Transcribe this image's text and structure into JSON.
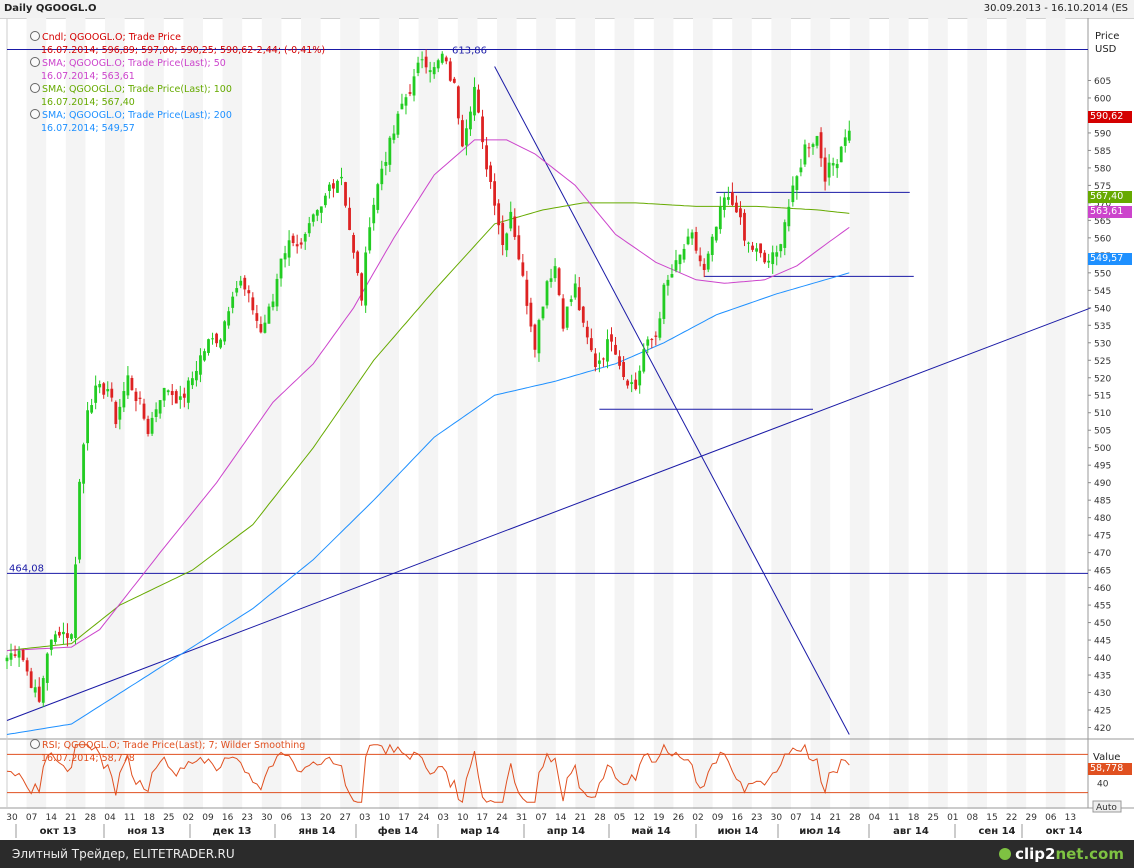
{
  "header": {
    "title": "Daily QGOOGL.O",
    "range": "30.09.2013 - 16.10.2014 (ES"
  },
  "legend": [
    {
      "line1": "Cndl; QGOOGL.O; Trade Price",
      "line2": "16.07.2014; 596,89; 597,00; 590,25; 590,62-2,44; (-0,41%)",
      "color": "#d40000"
    },
    {
      "line1": "SMA; QGOOGL.O; Trade Price(Last); 50",
      "line2": "16.07.2014; 563,61",
      "color": "#cc44cc"
    },
    {
      "line1": "SMA; QGOOGL.O; Trade Price(Last); 100",
      "line2": "16.07.2014; 567,40",
      "color": "#66aa00"
    },
    {
      "line1": "SMA; QGOOGL.O; Trade Price(Last); 200",
      "line2": "16.07.2014; 549,57",
      "color": "#1e90ff"
    }
  ],
  "rsi_legend": {
    "line1": "RSI; QGOOGL.O; Trade Price(Last); 7; Wilder Smoothing",
    "line2": "16.07.2014; 58,778"
  },
  "price_axis": {
    "title1": "Price",
    "title2": "USD",
    "labels": [
      "605",
      "600",
      "595",
      "590",
      "585",
      "580",
      "575",
      "570",
      "565",
      "560",
      "555",
      "550",
      "545",
      "540",
      "535",
      "530",
      "525",
      "520",
      "515",
      "510",
      "505",
      "500",
      "495",
      "490",
      "485",
      "480",
      "475",
      "470",
      "465",
      "460",
      "455",
      "450",
      "445",
      "440",
      "435",
      "430",
      "425",
      "420"
    ]
  },
  "rsi_axis": {
    "title": "Value",
    "labels": [
      "40"
    ],
    "auto": "Auto"
  },
  "markers": {
    "current": "590,62",
    "sma100": "567,40",
    "sma50": "563,61",
    "sma200": "549,57",
    "rsi": "58,778",
    "level_high": "613,86",
    "level_low": "464,08"
  },
  "colors": {
    "up": "#22cc22",
    "down": "#dd2222",
    "sma50": "#cc44cc",
    "sma100": "#66aa00",
    "sma200": "#1e90ff",
    "lines": "#1a1aa6",
    "rsi": "#e05020"
  },
  "x_days": [
    "30",
    "07",
    "14",
    "21",
    "28",
    "04",
    "11",
    "18",
    "25",
    "02",
    "09",
    "16",
    "23",
    "30",
    "06",
    "13",
    "20",
    "27",
    "03",
    "10",
    "17",
    "24",
    "03",
    "10",
    "17",
    "24",
    "31",
    "07",
    "14",
    "21",
    "28",
    "05",
    "12",
    "19",
    "26",
    "02",
    "09",
    "16",
    "23",
    "30",
    "07",
    "14",
    "21",
    "28",
    "04",
    "11",
    "18",
    "25",
    "01",
    "08",
    "15",
    "22",
    "29",
    "06",
    "13"
  ],
  "x_months": [
    "окт 13",
    "ноя 13",
    "дек 13",
    "янв 14",
    "фев 14",
    "мар 14",
    "апр 14",
    "май 14",
    "июн 14",
    "июл 14",
    "авг 14",
    "сен 14",
    "окт 14"
  ],
  "footer": {
    "site": "Элитный Трейдер, ELITETRADER.RU",
    "brand_main": "clip2",
    "brand_tld": "net.com"
  },
  "chart_data": {
    "type": "line",
    "title": "Daily QGOOGL.O",
    "ylabel": "Price USD",
    "ylim": [
      417,
      618
    ],
    "x_months": [
      "окт 13",
      "ноя 13",
      "дек 13",
      "янв 14",
      "фев 14",
      "мар 14",
      "апр 14",
      "май 14",
      "июн 14",
      "июл 14",
      "авг 14",
      "сен 14",
      "окт 14"
    ],
    "close_path": [
      [
        0,
        440
      ],
      [
        3,
        443
      ],
      [
        5,
        436
      ],
      [
        8,
        427
      ],
      [
        10,
        442
      ],
      [
        13,
        448
      ],
      [
        16,
        446
      ],
      [
        18,
        490
      ],
      [
        20,
        512
      ],
      [
        22,
        516
      ],
      [
        25,
        517
      ],
      [
        27,
        508
      ],
      [
        30,
        520
      ],
      [
        33,
        512
      ],
      [
        35,
        505
      ],
      [
        38,
        515
      ],
      [
        40,
        517
      ],
      [
        43,
        513
      ],
      [
        46,
        520
      ],
      [
        48,
        526
      ],
      [
        50,
        530
      ],
      [
        53,
        532
      ],
      [
        56,
        545
      ],
      [
        58,
        547
      ],
      [
        61,
        540
      ],
      [
        63,
        533
      ],
      [
        66,
        542
      ],
      [
        68,
        555
      ],
      [
        71,
        560
      ],
      [
        73,
        557
      ],
      [
        76,
        565
      ],
      [
        78,
        568
      ],
      [
        80,
        575
      ],
      [
        83,
        578
      ],
      [
        86,
        555
      ],
      [
        88,
        543
      ],
      [
        90,
        565
      ],
      [
        93,
        580
      ],
      [
        96,
        590
      ],
      [
        98,
        598
      ],
      [
        101,
        605
      ],
      [
        103,
        612
      ],
      [
        106,
        608
      ],
      [
        108,
        612
      ],
      [
        111,
        603
      ],
      [
        113,
        588
      ],
      [
        116,
        603
      ],
      [
        118,
        586
      ],
      [
        121,
        571
      ],
      [
        123,
        558
      ],
      [
        125,
        568
      ],
      [
        128,
        548
      ],
      [
        131,
        530
      ],
      [
        134,
        548
      ],
      [
        136,
        552
      ],
      [
        138,
        536
      ],
      [
        141,
        546
      ],
      [
        143,
        534
      ],
      [
        146,
        524
      ],
      [
        148,
        527
      ],
      [
        150,
        532
      ],
      [
        153,
        521
      ],
      [
        156,
        517
      ],
      [
        158,
        528
      ],
      [
        161,
        532
      ],
      [
        163,
        545
      ],
      [
        166,
        552
      ],
      [
        168,
        557
      ],
      [
        170,
        560
      ],
      [
        173,
        550
      ],
      [
        176,
        563
      ],
      [
        178,
        571
      ],
      [
        181,
        569
      ],
      [
        183,
        559
      ],
      [
        186,
        556
      ],
      [
        188,
        553
      ],
      [
        191,
        555
      ],
      [
        193,
        565
      ],
      [
        196,
        577
      ],
      [
        198,
        586
      ],
      [
        201,
        589
      ],
      [
        203,
        578
      ],
      [
        206,
        583
      ],
      [
        208,
        590
      ],
      [
        209,
        590
      ]
    ],
    "sma50_path": [
      [
        0,
        442
      ],
      [
        16,
        443
      ],
      [
        23,
        448
      ],
      [
        38,
        470
      ],
      [
        52,
        490
      ],
      [
        66,
        513
      ],
      [
        76,
        524
      ],
      [
        86,
        540
      ],
      [
        96,
        560
      ],
      [
        106,
        578
      ],
      [
        116,
        588
      ],
      [
        124,
        588
      ],
      [
        131,
        584
      ],
      [
        141,
        575
      ],
      [
        151,
        561
      ],
      [
        161,
        553
      ],
      [
        171,
        548
      ],
      [
        178,
        547
      ],
      [
        188,
        548
      ],
      [
        196,
        552
      ],
      [
        203,
        558
      ],
      [
        209,
        563
      ]
    ],
    "sma100_path": [
      [
        0,
        442
      ],
      [
        16,
        444
      ],
      [
        28,
        455
      ],
      [
        46,
        465
      ],
      [
        61,
        478
      ],
      [
        76,
        500
      ],
      [
        91,
        525
      ],
      [
        106,
        545
      ],
      [
        121,
        564
      ],
      [
        133,
        568
      ],
      [
        143,
        570
      ],
      [
        156,
        570
      ],
      [
        171,
        569
      ],
      [
        186,
        569
      ],
      [
        201,
        568
      ],
      [
        209,
        567
      ]
    ],
    "sma200_path": [
      [
        0,
        418
      ],
      [
        16,
        421
      ],
      [
        31,
        432
      ],
      [
        46,
        443
      ],
      [
        61,
        454
      ],
      [
        76,
        468
      ],
      [
        91,
        485
      ],
      [
        106,
        503
      ],
      [
        121,
        515
      ],
      [
        136,
        519
      ],
      [
        151,
        524
      ],
      [
        163,
        530
      ],
      [
        176,
        538
      ],
      [
        191,
        544
      ],
      [
        203,
        548
      ],
      [
        209,
        550
      ]
    ],
    "rsi_range": [
      15,
      85
    ],
    "rsi_levels": [
      70,
      30
    ],
    "rsi_current": 58.778,
    "levels": [
      613.86,
      464.08
    ]
  }
}
